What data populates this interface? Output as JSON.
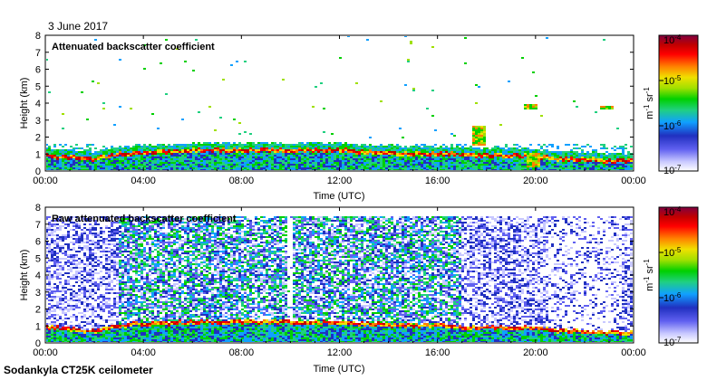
{
  "date_label": "3 June 2017",
  "instrument_label": "Sodankyla CT25K ceilometer",
  "colors": {
    "background": "#ffffff",
    "plot_bg": "#ffffff",
    "colormap": [
      "#ffffff",
      "#c8c8ff",
      "#6060f0",
      "#2030c0",
      "#10a0ff",
      "#20d080",
      "#00d000",
      "#a0e000",
      "#f0e000",
      "#ff8000",
      "#ff0000",
      "#c00000",
      "#800040"
    ]
  },
  "chart_data": [
    {
      "type": "heatmap",
      "title": "Attenuated backscatter coefficient",
      "xlabel": "Time (UTC)",
      "ylabel": "Height (km)",
      "x_ticks": [
        "00:00",
        "04:00",
        "08:00",
        "12:00",
        "16:00",
        "20:00",
        "00:00"
      ],
      "xlim_hours": [
        0,
        24
      ],
      "ylim": [
        0,
        8
      ],
      "y_ticks": [
        "0",
        "1",
        "2",
        "3",
        "4",
        "5",
        "6",
        "7",
        "8"
      ],
      "colorbar": {
        "label_main": "m",
        "label_sup1": "-1",
        "label_mid": " sr",
        "label_sup2": "-1",
        "scale": "log",
        "range": [
          1e-07,
          0.0001
        ],
        "ticks": [
          {
            "base": "10",
            "exp": "-4",
            "value": 0.0001
          },
          {
            "base": "10",
            "exp": "-5",
            "value": 1e-05
          },
          {
            "base": "10",
            "exp": "-6",
            "value": 1e-06
          },
          {
            "base": "10",
            "exp": "-7",
            "value": 1e-07
          }
        ]
      },
      "boundary_layer_top_km": [
        [
          0,
          1.0
        ],
        [
          1,
          0.9
        ],
        [
          2,
          0.8
        ],
        [
          3,
          1.1
        ],
        [
          4,
          1.2
        ],
        [
          5,
          1.25
        ],
        [
          6,
          1.3
        ],
        [
          7,
          1.3
        ],
        [
          8,
          1.35
        ],
        [
          9,
          1.35
        ],
        [
          10,
          1.3
        ],
        [
          11,
          1.3
        ],
        [
          12,
          1.3
        ],
        [
          13,
          1.2
        ],
        [
          14,
          1.15
        ],
        [
          15,
          1.1
        ],
        [
          16,
          1.1
        ],
        [
          17,
          1.05
        ],
        [
          18,
          1.0
        ],
        [
          19,
          1.0
        ],
        [
          20,
          0.95
        ],
        [
          21,
          0.8
        ],
        [
          22,
          0.75
        ],
        [
          23,
          0.7
        ],
        [
          24,
          0.65
        ]
      ],
      "features": [
        {
          "name": "aerosol plume",
          "time_h": 17.7,
          "base_km": 1.5,
          "top_km": 2.7
        },
        {
          "name": "elevated layer",
          "time_h": 19.8,
          "base_km": 3.6,
          "top_km": 3.9
        },
        {
          "name": "low cloud",
          "time_h": 19.9,
          "base_km": 0.2,
          "top_km": 1.1
        },
        {
          "name": "elevated layer",
          "time_h": 22.9,
          "base_km": 3.6,
          "top_km": 3.8
        }
      ]
    },
    {
      "type": "heatmap",
      "title": "Raw attenuated backscatter coefficient",
      "xlabel": "Time (UTC)",
      "ylabel": "Height (km)",
      "x_ticks": [
        "00:00",
        "04:00",
        "08:00",
        "12:00",
        "16:00",
        "20:00",
        "00:00"
      ],
      "xlim_hours": [
        0,
        24
      ],
      "ylim": [
        0,
        8
      ],
      "y_ticks": [
        "0",
        "1",
        "2",
        "3",
        "4",
        "5",
        "6",
        "7",
        "8"
      ],
      "data_top_km": 7.5,
      "colorbar": {
        "label_main": "m",
        "label_sup1": "-1",
        "label_mid": " sr",
        "label_sup2": "-1",
        "scale": "log",
        "range": [
          1e-07,
          0.0001
        ],
        "ticks": [
          {
            "base": "10",
            "exp": "-4",
            "value": 0.0001
          },
          {
            "base": "10",
            "exp": "-5",
            "value": 1e-05
          },
          {
            "base": "10",
            "exp": "-6",
            "value": 1e-06
          },
          {
            "base": "10",
            "exp": "-7",
            "value": 1e-07
          }
        ]
      }
    }
  ]
}
